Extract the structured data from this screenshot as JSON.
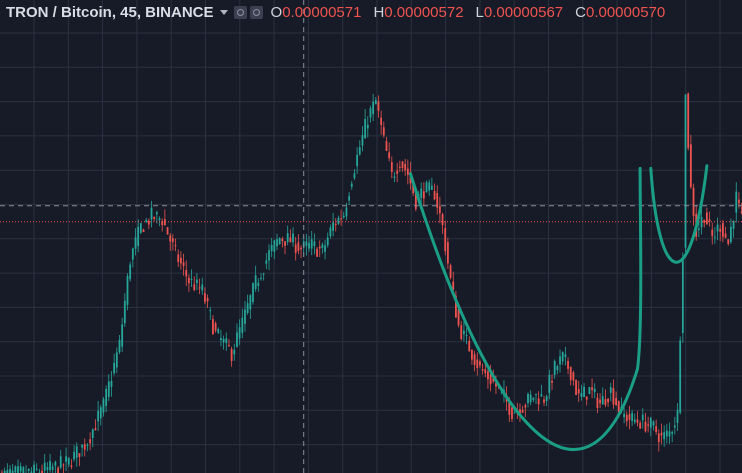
{
  "legend": {
    "title": "TRON / Bitcoin, 45, BINANCE",
    "open_label": "O",
    "open_value": "0.00000571",
    "high_label": "H",
    "high_value": "0.00000572",
    "low_label": "L",
    "low_value": "0.00000567",
    "close_label": "C",
    "close_value": "0.00000570"
  },
  "icons": [
    "settings-icon",
    "format-icon"
  ],
  "colors": {
    "background": "#161b27",
    "grid": "#2b3140",
    "up": "#26a69a",
    "down": "#ef5350",
    "pattern": "#1b9e86",
    "crosshair": "#8a8f99",
    "price_line": "#ef5350"
  },
  "chart_data": {
    "type": "candlestick",
    "symbol": "TRON / Bitcoin",
    "interval": "45",
    "exchange": "BINANCE",
    "y_range": [
      4.76e-06,
      6.53e-06
    ],
    "grid": true,
    "last_price": 5.7e-06,
    "crosshair_price": 5.76e-06,
    "waypoints": [
      [
        0,
        4.752e-06
      ],
      [
        10,
        4.76e-06
      ],
      [
        18,
        4.775e-06
      ],
      [
        25,
        4.8e-06
      ],
      [
        32,
        4.88e-06
      ],
      [
        38,
        5.01e-06
      ],
      [
        44,
        5.24e-06
      ],
      [
        48,
        5.56e-06
      ],
      [
        52,
        5.68e-06
      ],
      [
        56,
        5.72e-06
      ],
      [
        60,
        5.71e-06
      ],
      [
        65,
        5.58e-06
      ],
      [
        70,
        5.48e-06
      ],
      [
        75,
        5.44e-06
      ],
      [
        80,
        5.28e-06
      ],
      [
        86,
        5.21e-06
      ],
      [
        90,
        5.32e-06
      ],
      [
        95,
        5.47e-06
      ],
      [
        100,
        5.58e-06
      ],
      [
        104,
        5.64e-06
      ],
      [
        108,
        5.63e-06
      ],
      [
        112,
        5.6e-06
      ],
      [
        116,
        5.61e-06
      ],
      [
        120,
        5.59e-06
      ],
      [
        124,
        5.69e-06
      ],
      [
        128,
        5.73e-06
      ],
      [
        131,
        5.87e-06
      ],
      [
        134,
        5.98e-06
      ],
      [
        137,
        6.09e-06
      ],
      [
        140,
        6.15e-06
      ],
      [
        143,
        6e-06
      ],
      [
        146,
        5.87e-06
      ],
      [
        149,
        5.93e-06
      ],
      [
        152,
        5.88e-06
      ],
      [
        155,
        5.78e-06
      ],
      [
        158,
        5.82e-06
      ],
      [
        162,
        5.81e-06
      ],
      [
        165,
        5.68e-06
      ],
      [
        168,
        5.48e-06
      ],
      [
        171,
        5.31e-06
      ],
      [
        175,
        5.23e-06
      ],
      [
        179,
        5.15e-06
      ],
      [
        183,
        5.11e-06
      ],
      [
        187,
        5.06e-06
      ],
      [
        191,
        4.99e-06
      ],
      [
        195,
        5.01e-06
      ],
      [
        199,
        5.05e-06
      ],
      [
        203,
        5.04e-06
      ],
      [
        207,
        5.15e-06
      ],
      [
        210,
        5.19e-06
      ],
      [
        213,
        5.14e-06
      ],
      [
        216,
        5.04e-06
      ],
      [
        220,
        5.07e-06
      ],
      [
        224,
        5.02e-06
      ],
      [
        228,
        5.07e-06
      ],
      [
        232,
        4.98e-06
      ],
      [
        236,
        4.96e-06
      ],
      [
        240,
        4.95e-06
      ],
      [
        244,
        4.93e-06
      ],
      [
        247,
        4.89e-06
      ],
      [
        250,
        4.91e-06
      ],
      [
        253,
        4.98e-06
      ],
      [
        255,
        5.6e-06
      ],
      [
        256,
        6.17e-06
      ],
      [
        258,
        5.82e-06
      ],
      [
        260,
        5.66e-06
      ],
      [
        263,
        5.73e-06
      ],
      [
        266,
        5.64e-06
      ],
      [
        269,
        5.69e-06
      ],
      [
        272,
        5.62e-06
      ],
      [
        275,
        5.79e-06
      ],
      [
        277,
        5.7e-06
      ],
      [
        278,
        5.7e-06
      ]
    ]
  }
}
